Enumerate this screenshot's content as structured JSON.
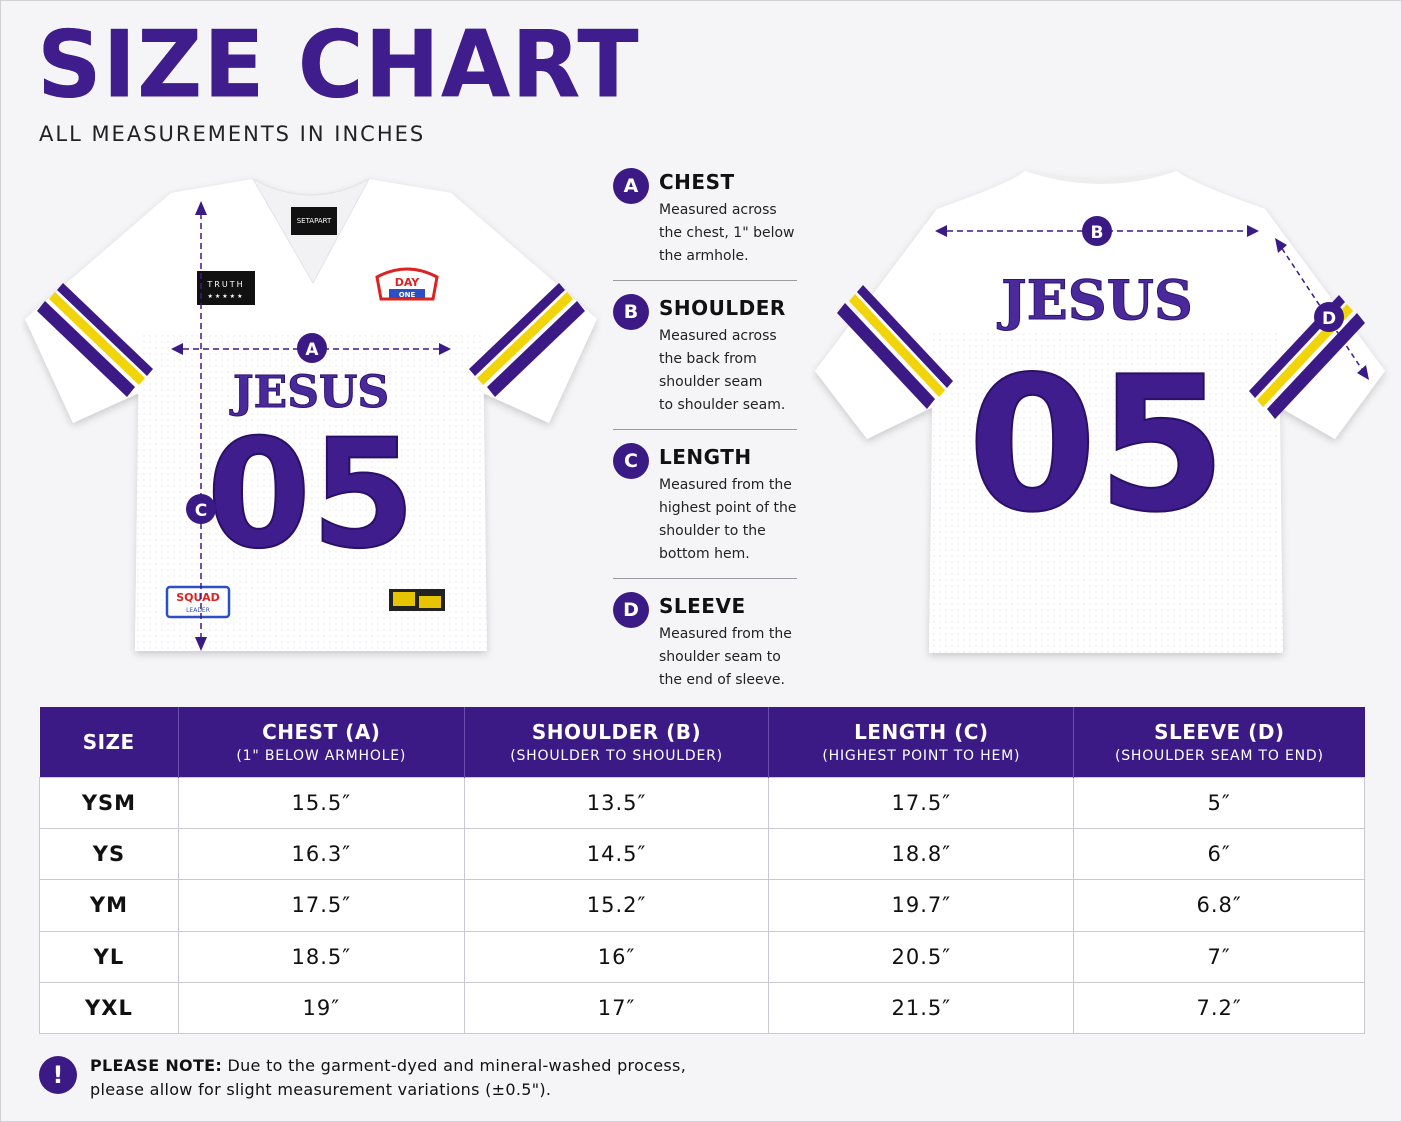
{
  "header": {
    "title": "SIZE CHART",
    "subtitle": "ALL MEASUREMENTS IN INCHES"
  },
  "front_jersey": {
    "neck_label": "SETAPART",
    "patch_left": "TRUTH",
    "patch_right_top": "DAY",
    "patch_right_bottom": "ONE",
    "name": "JESUS",
    "number": "05",
    "patch_bottom_left_top": "SQUAD",
    "patch_bottom_left_bottom": "LEADER",
    "marker_a": "A",
    "marker_c": "C"
  },
  "back_jersey": {
    "name": "JESUS",
    "number": "05",
    "marker_b": "B",
    "marker_d": "D"
  },
  "legend": [
    {
      "letter": "A",
      "title": "CHEST",
      "lines": [
        "Measured across",
        "the chest, 1\" below",
        "the armhole."
      ]
    },
    {
      "letter": "B",
      "title": "SHOULDER",
      "lines": [
        "Measured across",
        "the back from",
        "shoulder seam",
        "to shoulder seam."
      ]
    },
    {
      "letter": "C",
      "title": "LENGTH",
      "lines": [
        "Measured from the",
        "highest point of the",
        "shoulder to the",
        "bottom hem."
      ]
    },
    {
      "letter": "D",
      "title": "SLEEVE",
      "lines": [
        "Measured from the",
        "shoulder seam to",
        "the end of sleeve."
      ]
    }
  ],
  "table": {
    "headers": [
      {
        "main": "SIZE",
        "sub": ""
      },
      {
        "main": "CHEST (A)",
        "sub": "(1\" BELOW ARMHOLE)"
      },
      {
        "main": "SHOULDER (B)",
        "sub": "(SHOULDER TO SHOULDER)"
      },
      {
        "main": "LENGTH (C)",
        "sub": "(HIGHEST POINT TO HEM)"
      },
      {
        "main": "SLEEVE (D)",
        "sub": "(SHOULDER SEAM TO END)"
      }
    ],
    "rows": [
      [
        "YSM",
        "15.5″",
        "13.5″",
        "17.5″",
        "5″"
      ],
      [
        "YS",
        "16.3″",
        "14.5″",
        "18.8″",
        "6″"
      ],
      [
        "YM",
        "17.5″",
        "15.2″",
        "19.7″",
        "6.8″"
      ],
      [
        "YL",
        "18.5″",
        "16″",
        "20.5″",
        "7″"
      ],
      [
        "YXL",
        "19″",
        "17″",
        "21.5″",
        "7.2″"
      ]
    ]
  },
  "note": {
    "icon": "!",
    "label": "PLEASE NOTE:",
    "text": " Due to the garment-dyed and mineral-washed process,",
    "text2": "please allow for slight measurement variations (±0.5\")."
  },
  "colors": {
    "purple": "#3b1a86",
    "gold": "#f2d40a",
    "jersey": "#ffffff"
  }
}
